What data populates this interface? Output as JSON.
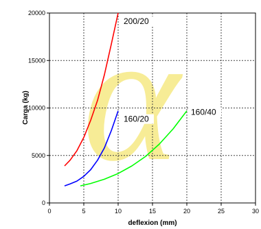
{
  "chart_data": {
    "type": "line",
    "xlabel": "deflexion (mm)",
    "ylabel": "Carga (kg)",
    "xlim": [
      0,
      30
    ],
    "ylim": [
      0,
      20000
    ],
    "x_ticks": [
      0,
      5,
      10,
      15,
      20,
      25,
      30
    ],
    "y_ticks": [
      0,
      5000,
      10000,
      15000,
      20000
    ],
    "grid": true,
    "watermark": "α",
    "series": [
      {
        "name": "200/20",
        "color": "#ff0000",
        "x": [
          2.2,
          3,
          4,
          5,
          6,
          7,
          8,
          9,
          10
        ],
        "y": [
          3900,
          4500,
          5500,
          6900,
          8700,
          10800,
          13500,
          16700,
          20000
        ]
      },
      {
        "name": "160/20",
        "color": "#0000ff",
        "x": [
          2.2,
          3,
          4,
          5,
          6,
          7,
          8,
          9,
          10
        ],
        "y": [
          1800,
          2000,
          2300,
          2800,
          3500,
          4500,
          5800,
          7600,
          9700
        ]
      },
      {
        "name": "160/40",
        "color": "#00ff00",
        "x": [
          4.5,
          6,
          8,
          10,
          12,
          14,
          16,
          18,
          20
        ],
        "y": [
          1800,
          2050,
          2500,
          3100,
          3900,
          4900,
          6200,
          7800,
          9700
        ]
      }
    ]
  }
}
